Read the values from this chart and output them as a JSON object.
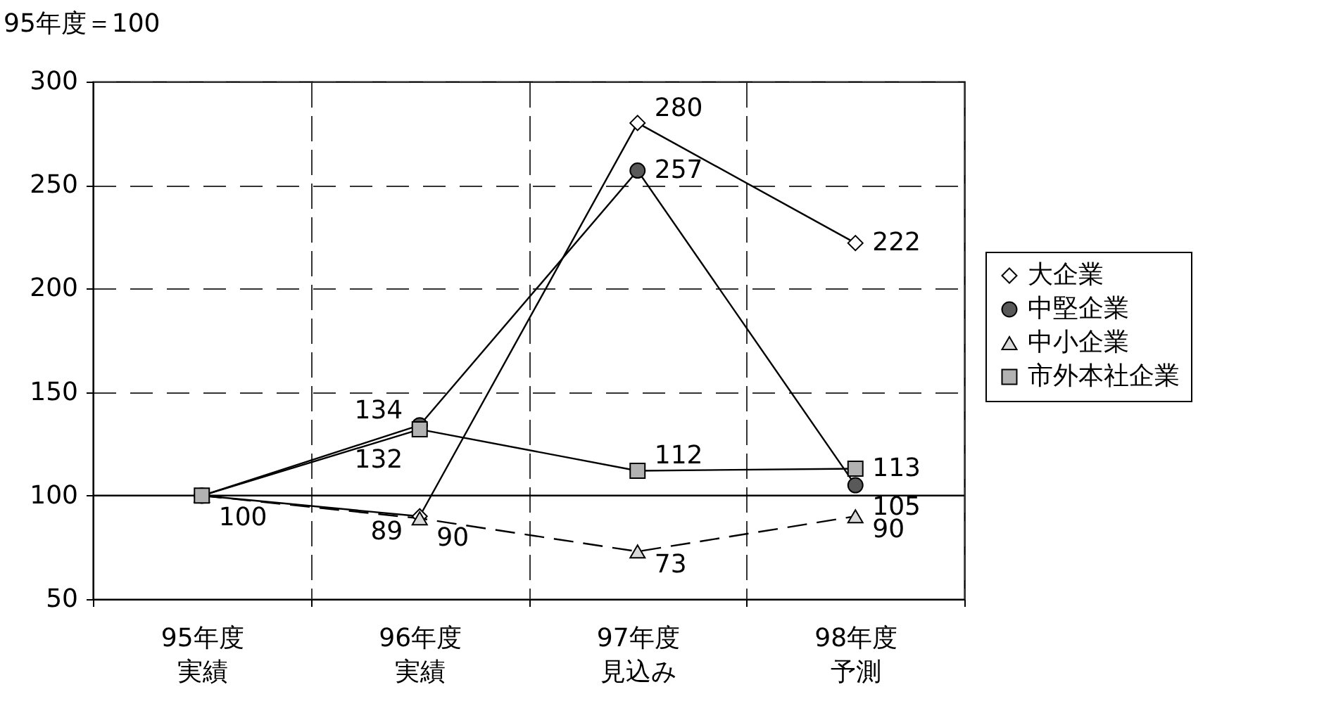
{
  "chart_data": {
    "type": "line",
    "ylabel": "95年度＝100",
    "categories": [
      "95年度実績",
      "96年度実績",
      "97年度見込み",
      "98年度予測"
    ],
    "series": [
      {
        "name": "大企業",
        "color": "#ffffff",
        "marker": "diamond",
        "line_style": "solid",
        "values": [
          100,
          90,
          280,
          222
        ],
        "value_labels": [
          "100",
          "90",
          "280",
          "222"
        ]
      },
      {
        "name": "中堅企業",
        "color": "#595959",
        "marker": "circle",
        "line_style": "solid",
        "values": [
          100,
          134,
          257,
          105
        ],
        "value_labels": [
          null,
          "134",
          "257",
          "105"
        ]
      },
      {
        "name": "中小企業",
        "color": "#d9d9d9",
        "marker": "triangle",
        "line_style": "dashed",
        "values": [
          100,
          89,
          73,
          90
        ],
        "value_labels": [
          null,
          "89",
          "73",
          "90"
        ]
      },
      {
        "name": "市外本社企業",
        "color": "#b2b2b2",
        "marker": "square",
        "line_style": "solid",
        "values": [
          100,
          132,
          112,
          113
        ],
        "value_labels": [
          null,
          "132",
          "112",
          "113"
        ]
      }
    ],
    "ylim": [
      50,
      300
    ],
    "yticks": [
      50,
      100,
      150,
      200,
      250,
      300
    ],
    "grid": true,
    "legend": "right",
    "ref_lines": [
      {
        "axis": "y",
        "value": 100
      }
    ]
  }
}
